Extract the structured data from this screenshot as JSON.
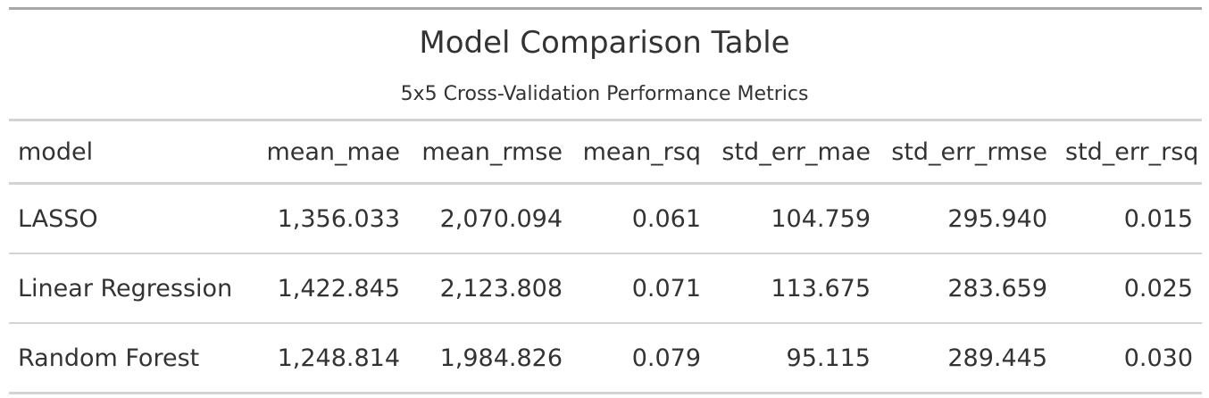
{
  "title": "Model Comparison Table",
  "subtitle": "5x5 Cross-Validation Performance Metrics",
  "columns": [
    "model",
    "mean_mae",
    "mean_rmse",
    "mean_rsq",
    "std_err_mae",
    "std_err_rmse",
    "std_err_rsq"
  ],
  "rows": [
    [
      "LASSO",
      "1,356.033",
      "2,070.094",
      "0.061",
      "104.759",
      "295.940",
      "0.015"
    ],
    [
      "Linear Regression",
      "1,422.845",
      "2,123.808",
      "0.071",
      "113.675",
      "283.659",
      "0.025"
    ],
    [
      "Random Forest",
      "1,248.814",
      "1,984.826",
      "0.079",
      "95.115",
      "289.445",
      "0.030"
    ]
  ],
  "colors": {
    "text": "#333333",
    "rule": "#d3d3d3",
    "top_rule": "#a8a8a8"
  }
}
